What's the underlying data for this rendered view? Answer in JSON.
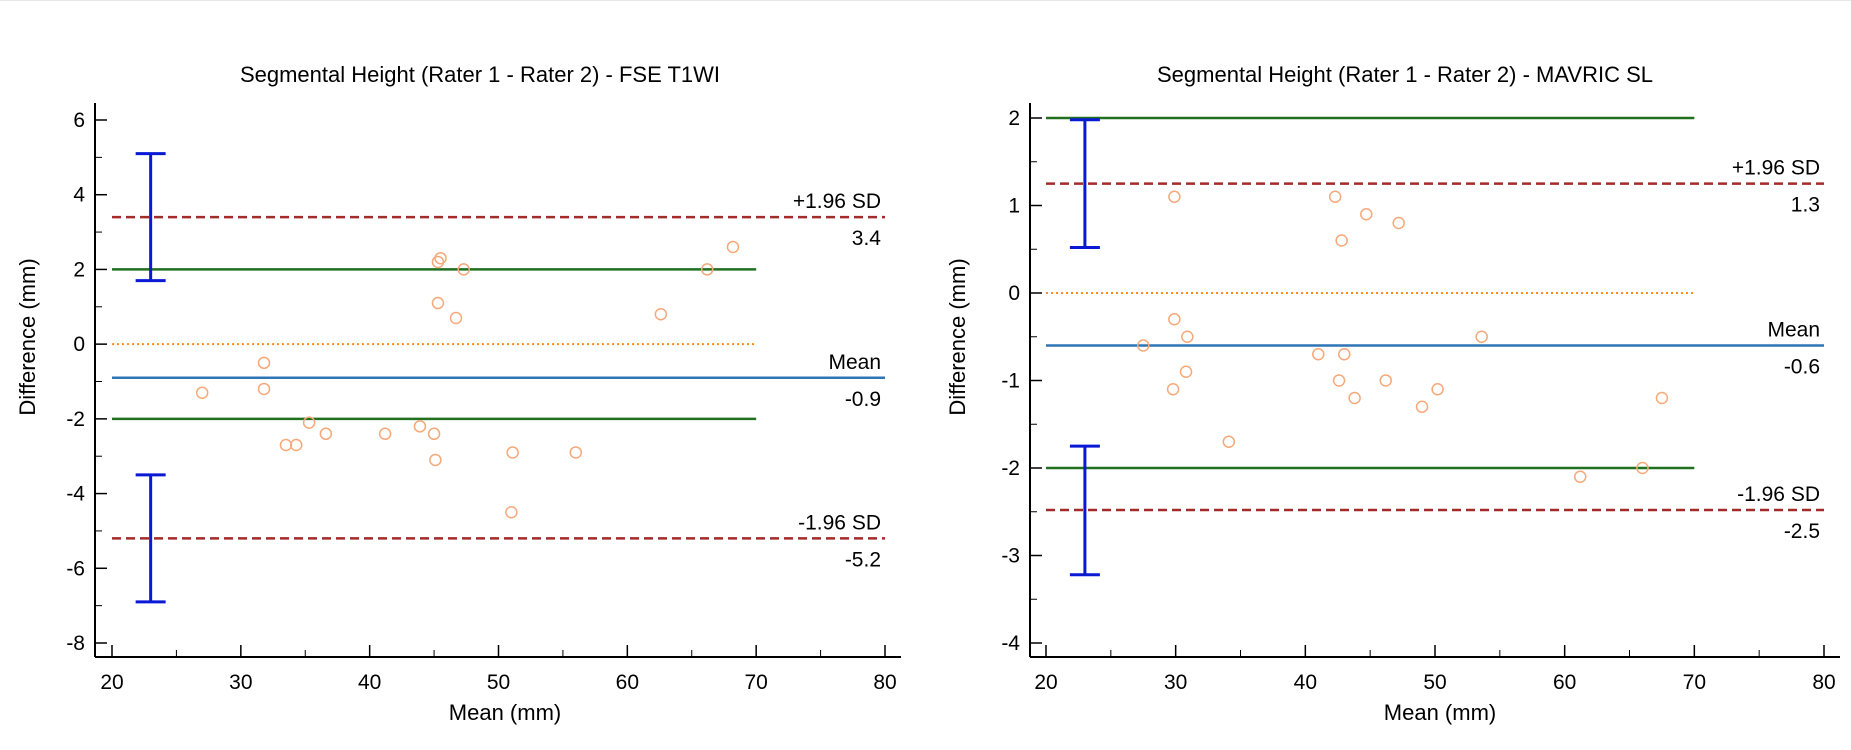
{
  "chart_data": [
    {
      "type": "scatter",
      "variant": "bland-altman",
      "title": "Segmental Height (Rater 1 - Rater 2) - FSE T1WI",
      "xlabel": "Mean (mm)",
      "ylabel": "Difference (mm)",
      "xlim": [
        20,
        80
      ],
      "ylim": [
        -8,
        6
      ],
      "xticks": [
        20,
        30,
        40,
        50,
        60,
        70,
        80
      ],
      "yticks": [
        -8,
        -6,
        -4,
        -2,
        0,
        2,
        4,
        6
      ],
      "x": [
        27.0,
        31.8,
        31.8,
        33.5,
        34.3,
        35.3,
        36.6,
        41.2,
        43.9,
        45.0,
        45.1,
        45.3,
        45.5,
        45.3,
        46.7,
        47.3,
        51.1,
        51.0,
        56.0,
        62.6,
        66.2,
        68.2
      ],
      "y": [
        -1.3,
        -0.5,
        -1.2,
        -2.7,
        -2.7,
        -2.1,
        -2.4,
        -2.4,
        -2.2,
        -2.4,
        -3.1,
        2.2,
        2.3,
        1.1,
        0.7,
        2.0,
        -2.9,
        -4.5,
        -2.9,
        0.8,
        2.0,
        2.6
      ],
      "mean_line": {
        "value": -0.9,
        "label": "Mean",
        "value_label": "-0.9",
        "color": "#2e75b6"
      },
      "upper_loa": {
        "value": 3.4,
        "label": "+1.96 SD",
        "value_label": "3.4",
        "color": "#a52a2a"
      },
      "lower_loa": {
        "value": -5.2,
        "label": "-1.96 SD",
        "value_label": "-5.2",
        "color": "#a52a2a"
      },
      "zero_line": {
        "value": 0,
        "color": "#ff8c1a"
      },
      "reference_lines": {
        "values": [
          2,
          -2
        ],
        "x_range": [
          20,
          70
        ],
        "color": "#207020"
      },
      "confidence_intervals": [
        {
          "x": 23,
          "low": 1.7,
          "high": 5.1
        },
        {
          "x": 23,
          "low": -6.9,
          "high": -3.5
        }
      ],
      "ci_color": "#0a1ad4",
      "marker_color": "#f5a97a"
    },
    {
      "type": "scatter",
      "variant": "bland-altman",
      "title": "Segmental Height (Rater 1 - Rater 2) - MAVRIC SL",
      "xlabel": "Mean (mm)",
      "ylabel": "Difference (mm)",
      "xlim": [
        20,
        80
      ],
      "ylim": [
        -4,
        2
      ],
      "xticks": [
        20,
        30,
        40,
        50,
        60,
        70,
        80
      ],
      "yticks": [
        -4,
        -3,
        -2,
        -1,
        0,
        1,
        2
      ],
      "x": [
        29.9,
        42.3,
        44.7,
        47.2,
        42.8,
        29.9,
        27.5,
        30.9,
        41.0,
        43.0,
        53.6,
        30.8,
        29.8,
        42.6,
        46.2,
        50.2,
        43.8,
        49.0,
        34.1,
        67.5,
        61.2,
        66.0
      ],
      "y": [
        1.1,
        1.1,
        0.9,
        0.8,
        0.6,
        -0.3,
        -0.6,
        -0.5,
        -0.7,
        -0.7,
        -0.5,
        -0.9,
        -1.1,
        -1.0,
        -1.0,
        -1.1,
        -1.2,
        -1.3,
        -1.7,
        -1.2,
        -2.1,
        -2.0
      ],
      "mean_line": {
        "value": -0.6,
        "label": "Mean",
        "value_label": "-0.6",
        "color": "#2e75b6"
      },
      "upper_loa": {
        "value": 1.25,
        "label": "+1.96 SD",
        "value_label": "1.3",
        "color": "#a52a2a"
      },
      "lower_loa": {
        "value": -2.48,
        "label": "-1.96 SD",
        "value_label": "-2.5",
        "color": "#a52a2a"
      },
      "zero_line": {
        "value": 0,
        "color": "#ff8c1a"
      },
      "reference_lines": {
        "values": [
          2,
          -2
        ],
        "x_range": [
          20,
          70
        ],
        "color": "#207020"
      },
      "confidence_intervals": [
        {
          "x": 23,
          "low": 0.52,
          "high": 1.98
        },
        {
          "x": 23,
          "low": -3.22,
          "high": -1.75
        }
      ],
      "ci_color": "#0a1ad4",
      "marker_color": "#f5a97a"
    }
  ]
}
